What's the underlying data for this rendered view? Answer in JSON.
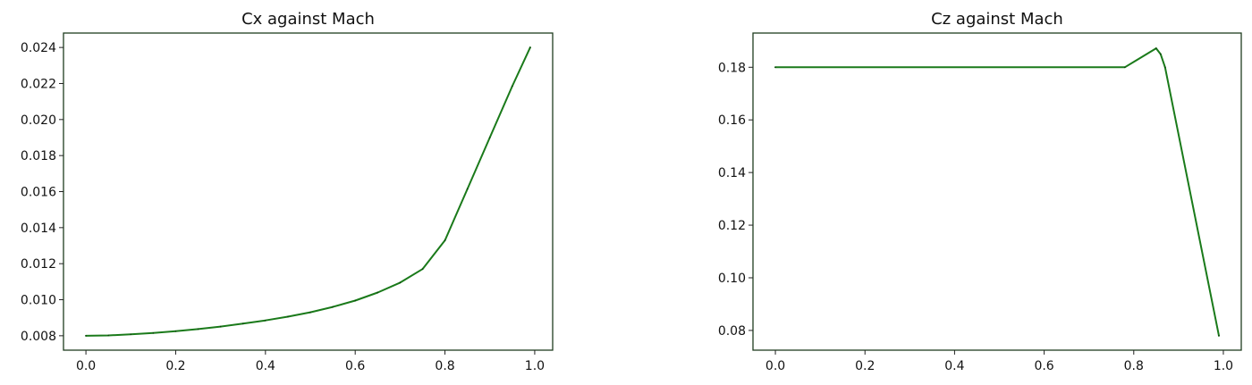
{
  "chart_data": [
    {
      "type": "line",
      "title": "Cx against Mach",
      "xlabel": "",
      "ylabel": "",
      "xlim": [
        -0.05,
        1.04
      ],
      "ylim": [
        0.0072,
        0.0248
      ],
      "xticks": [
        0.0,
        0.2,
        0.4,
        0.6,
        0.8,
        1.0
      ],
      "xtick_labels": [
        "0.0",
        "0.2",
        "0.4",
        "0.6",
        "0.8",
        "1.0"
      ],
      "yticks": [
        0.008,
        0.01,
        0.012,
        0.014,
        0.016,
        0.018,
        0.02,
        0.022,
        0.024
      ],
      "ytick_labels": [
        "0.008",
        "0.010",
        "0.012",
        "0.014",
        "0.016",
        "0.018",
        "0.020",
        "0.022",
        "0.024"
      ],
      "grid": false,
      "line_color": "#1a7a1a",
      "series": [
        {
          "x": [
            0.0,
            0.05,
            0.1,
            0.15,
            0.2,
            0.25,
            0.3,
            0.35,
            0.4,
            0.45,
            0.5,
            0.55,
            0.6,
            0.65,
            0.7,
            0.75,
            0.8,
            0.85,
            0.9,
            0.95,
            0.99
          ],
          "values": [
            0.008,
            0.00802,
            0.00808,
            0.00815,
            0.00825,
            0.00837,
            0.00851,
            0.00867,
            0.00885,
            0.00906,
            0.0093,
            0.0096,
            0.00995,
            0.0104,
            0.01095,
            0.0117,
            0.0133,
            0.01615,
            0.019,
            0.02185,
            0.024
          ]
        }
      ]
    },
    {
      "type": "line",
      "title": "Cz against Mach",
      "xlabel": "",
      "ylabel": "",
      "xlim": [
        -0.05,
        1.04
      ],
      "ylim": [
        0.0725,
        0.193
      ],
      "xticks": [
        0.0,
        0.2,
        0.4,
        0.6,
        0.8,
        1.0
      ],
      "xtick_labels": [
        "0.0",
        "0.2",
        "0.4",
        "0.6",
        "0.8",
        "1.0"
      ],
      "yticks": [
        0.08,
        0.1,
        0.12,
        0.14,
        0.16,
        0.18
      ],
      "ytick_labels": [
        "0.08",
        "0.10",
        "0.12",
        "0.14",
        "0.16",
        "0.18"
      ],
      "grid": false,
      "line_color": "#1a7a1a",
      "series": [
        {
          "x": [
            0.0,
            0.78,
            0.85,
            0.86,
            0.87,
            0.99
          ],
          "values": [
            0.18,
            0.18,
            0.1872,
            0.185,
            0.18,
            0.078
          ]
        }
      ]
    }
  ]
}
